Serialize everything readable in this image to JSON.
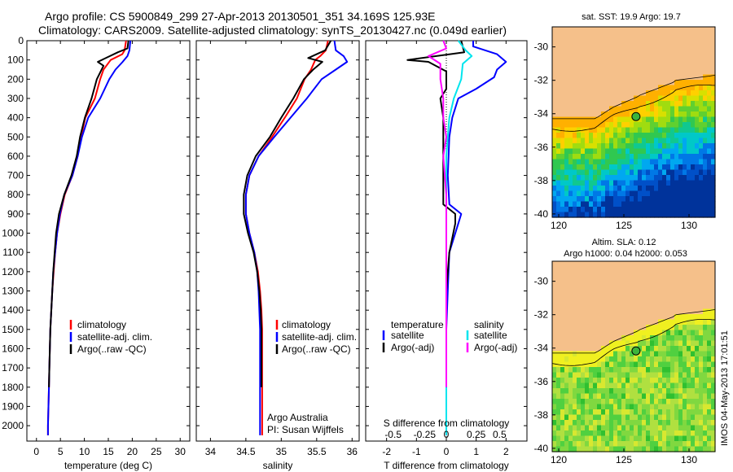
{
  "header": {
    "line1": "Argo profile: CS 5900849_299 27-Apr-2013 20130501_351 34.169S 125.93E",
    "line2": "Climatology: CARS2009. Satellite-adjusted climatology: synTS_20130427.nc (0.049d earlier)"
  },
  "colors": {
    "climatology": "#ff0000",
    "satellite": "#0000ff",
    "argo": "#000000",
    "salinity_satellite": "#00e5ee",
    "salinity_argo": "#ff00ff",
    "land": "#f5c08a",
    "frame": "#000000"
  },
  "chart_data": [
    {
      "type": "line",
      "xlabel": "temperature (deg C)",
      "ylabel": "",
      "xlim": [
        -2,
        32
      ],
      "ylim": [
        2080,
        0
      ],
      "xticks": [
        0,
        5,
        10,
        15,
        20,
        25,
        30
      ],
      "yticks": [
        0,
        100,
        200,
        300,
        400,
        500,
        600,
        700,
        800,
        900,
        1000,
        1100,
        1200,
        1300,
        1400,
        1500,
        1600,
        1700,
        1800,
        1900,
        2000
      ],
      "legend": [
        "climatology",
        "satellite-adj. clim.",
        "Argo(..raw -QC)"
      ],
      "series": [
        {
          "name": "climatology",
          "color": "#ff0000",
          "points": [
            [
              18.7,
              0
            ],
            [
              18.4,
              50
            ],
            [
              17.9,
              70
            ],
            [
              15.5,
              100
            ],
            [
              14.0,
              150
            ],
            [
              13.3,
              200
            ],
            [
              12.2,
              300
            ],
            [
              10.2,
              400
            ],
            [
              9.3,
              500
            ],
            [
              8.6,
              600
            ],
            [
              7.5,
              700
            ],
            [
              5.9,
              800
            ],
            [
              5.0,
              900
            ],
            [
              4.3,
              1000
            ],
            [
              3.9,
              1100
            ],
            [
              3.6,
              1200
            ],
            [
              3.3,
              1300
            ],
            [
              3.1,
              1400
            ],
            [
              2.9,
              1500
            ],
            [
              2.8,
              1600
            ],
            [
              2.7,
              1700
            ],
            [
              2.6,
              1800
            ],
            [
              2.5,
              1900
            ],
            [
              2.4,
              2000
            ],
            [
              2.4,
              2050
            ]
          ]
        },
        {
          "name": "satellite-adj. clim.",
          "color": "#0000ff",
          "points": [
            [
              19.6,
              0
            ],
            [
              19.4,
              50
            ],
            [
              19.0,
              80
            ],
            [
              18.0,
              110
            ],
            [
              16.5,
              150
            ],
            [
              15.2,
              200
            ],
            [
              13.3,
              300
            ],
            [
              10.8,
              400
            ],
            [
              9.5,
              500
            ],
            [
              8.6,
              600
            ],
            [
              7.5,
              700
            ],
            [
              5.8,
              800
            ],
            [
              4.9,
              900
            ],
            [
              4.3,
              1000
            ],
            [
              3.9,
              1100
            ],
            [
              3.5,
              1200
            ],
            [
              3.3,
              1300
            ],
            [
              3.1,
              1400
            ],
            [
              2.9,
              1500
            ],
            [
              2.8,
              1600
            ],
            [
              2.7,
              1700
            ],
            [
              2.6,
              1800
            ],
            [
              2.5,
              1900
            ],
            [
              2.4,
              2000
            ],
            [
              2.4,
              2050
            ]
          ]
        },
        {
          "name": "Argo(..raw -QC)",
          "color": "#000000",
          "points": [
            [
              19.2,
              0
            ],
            [
              19.0,
              40
            ],
            [
              17.0,
              60
            ],
            [
              12.8,
              110
            ],
            [
              14.0,
              130
            ],
            [
              12.6,
              200
            ],
            [
              11.5,
              300
            ],
            [
              10.1,
              400
            ],
            [
              9.1,
              500
            ],
            [
              8.4,
              600
            ],
            [
              7.3,
              700
            ],
            [
              5.8,
              800
            ],
            [
              4.7,
              900
            ],
            [
              4.1,
              1000
            ],
            [
              3.8,
              1100
            ],
            [
              3.5,
              1200
            ],
            [
              3.3,
              1300
            ],
            [
              3.1,
              1400
            ],
            [
              2.9,
              1500
            ],
            [
              2.8,
              1600
            ],
            [
              2.7,
              1700
            ],
            [
              2.6,
              1800
            ]
          ]
        }
      ]
    },
    {
      "type": "line",
      "xlabel": "salinity",
      "ylabel": "",
      "xlim": [
        33.8,
        36.1
      ],
      "ylim": [
        2080,
        0
      ],
      "xticks": [
        34,
        34.5,
        35,
        35.5,
        36
      ],
      "xticklabels": [
        "34",
        "34.5",
        "35",
        "35.5",
        "36"
      ],
      "legend": [
        "climatology",
        "satellite-adj. clim.",
        "Argo(..raw -QC)"
      ],
      "annotation": [
        "Argo Australia",
        "PI: Susan Wijffels"
      ],
      "series": [
        {
          "name": "climatology",
          "color": "#ff0000",
          "points": [
            [
              35.66,
              0
            ],
            [
              35.63,
              50
            ],
            [
              35.55,
              80
            ],
            [
              35.48,
              100
            ],
            [
              35.42,
              150
            ],
            [
              35.33,
              200
            ],
            [
              35.22,
              300
            ],
            [
              35.05,
              400
            ],
            [
              34.87,
              500
            ],
            [
              34.68,
              600
            ],
            [
              34.55,
              700
            ],
            [
              34.5,
              800
            ],
            [
              34.5,
              900
            ],
            [
              34.55,
              1000
            ],
            [
              34.62,
              1100
            ],
            [
              34.67,
              1200
            ],
            [
              34.7,
              1300
            ],
            [
              34.72,
              1400
            ],
            [
              34.73,
              1500
            ],
            [
              34.73,
              1600
            ],
            [
              34.73,
              1700
            ],
            [
              34.73,
              1800
            ],
            [
              34.73,
              1900
            ],
            [
              34.73,
              2000
            ],
            [
              34.73,
              2050
            ]
          ]
        },
        {
          "name": "satellite-adj. clim.",
          "color": "#0000ff",
          "points": [
            [
              35.75,
              0
            ],
            [
              35.77,
              50
            ],
            [
              35.88,
              80
            ],
            [
              35.93,
              110
            ],
            [
              35.77,
              150
            ],
            [
              35.57,
              200
            ],
            [
              35.36,
              300
            ],
            [
              35.13,
              400
            ],
            [
              34.9,
              500
            ],
            [
              34.68,
              600
            ],
            [
              34.55,
              700
            ],
            [
              34.5,
              800
            ],
            [
              34.5,
              900
            ],
            [
              34.55,
              1000
            ],
            [
              34.62,
              1100
            ],
            [
              34.66,
              1200
            ],
            [
              34.68,
              1300
            ],
            [
              34.69,
              1400
            ],
            [
              34.7,
              1500
            ],
            [
              34.7,
              1600
            ],
            [
              34.7,
              1700
            ],
            [
              34.7,
              1800
            ],
            [
              34.7,
              1900
            ],
            [
              34.7,
              2000
            ],
            [
              34.7,
              2050
            ]
          ]
        },
        {
          "name": "Argo(..raw -QC)",
          "color": "#000000",
          "points": [
            [
              35.7,
              0
            ],
            [
              35.62,
              50
            ],
            [
              35.38,
              90
            ],
            [
              35.58,
              110
            ],
            [
              35.45,
              150
            ],
            [
              35.32,
              200
            ],
            [
              35.17,
              300
            ],
            [
              35.0,
              400
            ],
            [
              34.84,
              500
            ],
            [
              34.64,
              600
            ],
            [
              34.52,
              700
            ],
            [
              34.47,
              800
            ],
            [
              34.47,
              900
            ],
            [
              34.53,
              1000
            ],
            [
              34.61,
              1100
            ],
            [
              34.66,
              1200
            ],
            [
              34.69,
              1300
            ],
            [
              34.71,
              1400
            ],
            [
              34.72,
              1500
            ],
            [
              34.72,
              1600
            ],
            [
              34.72,
              1700
            ],
            [
              34.72,
              1800
            ]
          ]
        }
      ]
    },
    {
      "type": "line",
      "xlabel": "T difference from climatology",
      "title": "S difference from climatology",
      "xlim": [
        -2.7,
        2.7
      ],
      "ylim": [
        2080,
        0
      ],
      "xticks": [
        -2,
        -1,
        0,
        1,
        2
      ],
      "top_ticks": [
        "-0.5",
        "-0.25",
        "0",
        "0.25",
        "0.5"
      ],
      "legend_left_title": "temperature",
      "legend_right_title": "salinity",
      "legend": [
        "satellite",
        "Argo(-adj)",
        "satellite",
        "Argo(-adj)"
      ],
      "series": [
        {
          "name": "temperature satellite",
          "color": "#0000ff",
          "points": [
            [
              0.9,
              0
            ],
            [
              0.9,
              30
            ],
            [
              1.7,
              70
            ],
            [
              2.0,
              110
            ],
            [
              1.7,
              150
            ],
            [
              1.6,
              190
            ],
            [
              1.0,
              250
            ],
            [
              0.4,
              300
            ],
            [
              0.2,
              400
            ],
            [
              0.1,
              500
            ],
            [
              0.05,
              700
            ],
            [
              0.1,
              850
            ],
            [
              0.5,
              900
            ],
            [
              0.4,
              950
            ],
            [
              0.1,
              1100
            ],
            [
              0.05,
              1300
            ],
            [
              0,
              1500
            ],
            [
              0,
              2000
            ],
            [
              0,
              2050
            ]
          ]
        },
        {
          "name": "temperature Argo(-adj)",
          "color": "#000000",
          "points": [
            [
              0.5,
              0
            ],
            [
              0.6,
              60
            ],
            [
              -1.3,
              100
            ],
            [
              -0.6,
              110
            ],
            [
              0,
              160
            ],
            [
              0,
              250
            ],
            [
              -0.2,
              300
            ],
            [
              -0.1,
              400
            ],
            [
              -0.1,
              500
            ],
            [
              -0.1,
              700
            ],
            [
              -0.1,
              850
            ],
            [
              0.3,
              900
            ],
            [
              0.3,
              950
            ],
            [
              0.1,
              1100
            ],
            [
              0,
              1300
            ],
            [
              0,
              1500
            ],
            [
              0,
              1800
            ]
          ]
        },
        {
          "name": "salinity satellite",
          "color": "#00e5ee",
          "points": [
            [
              0.4,
              0
            ],
            [
              0.65,
              50
            ],
            [
              0.85,
              80
            ],
            [
              0.55,
              120
            ],
            [
              0.5,
              200
            ],
            [
              0.25,
              300
            ],
            [
              0.1,
              400
            ],
            [
              0.05,
              500
            ],
            [
              0,
              600
            ],
            [
              0,
              800
            ],
            [
              0,
              900
            ],
            [
              0,
              1100
            ],
            [
              0,
              1400
            ],
            [
              0,
              1800
            ],
            [
              0,
              2050
            ]
          ]
        },
        {
          "name": "salinity Argo(-adj)",
          "color": "#ff00ff",
          "points": [
            [
              -0.1,
              0
            ],
            [
              0,
              40
            ],
            [
              -0.6,
              80
            ],
            [
              -0.2,
              120
            ],
            [
              -0.2,
              200
            ],
            [
              -0.1,
              300
            ],
            [
              -0.1,
              400
            ],
            [
              0,
              500
            ],
            [
              -0.1,
              600
            ],
            [
              0,
              800
            ],
            [
              0,
              1000
            ],
            [
              0,
              1400
            ],
            [
              0,
              1800
            ]
          ]
        }
      ]
    },
    {
      "type": "heatmap",
      "title": "sat. SST: 19.9  Argo: 19.7",
      "xlim": [
        119.5,
        132
      ],
      "ylim": [
        -40.2,
        -28.8
      ],
      "xticks": [
        120,
        125,
        130
      ],
      "yticks": [
        -30,
        -32,
        -34,
        -36,
        -38,
        -40
      ],
      "marker": [
        125.93,
        -34.169
      ]
    },
    {
      "type": "heatmap",
      "title_line1": "Altim. SLA: 0.12",
      "title_line2": "Argo h1000: 0.04  h2000: 0.053",
      "xlim": [
        119.5,
        132
      ],
      "ylim": [
        -40.2,
        -28.8
      ],
      "xticks": [
        120,
        125,
        130
      ],
      "yticks": [
        -30,
        -32,
        -34,
        -36,
        -38,
        -40
      ],
      "marker": [
        125.93,
        -34.169
      ]
    }
  ],
  "watermark": "IMOS 04-May-2013 17:01:51"
}
